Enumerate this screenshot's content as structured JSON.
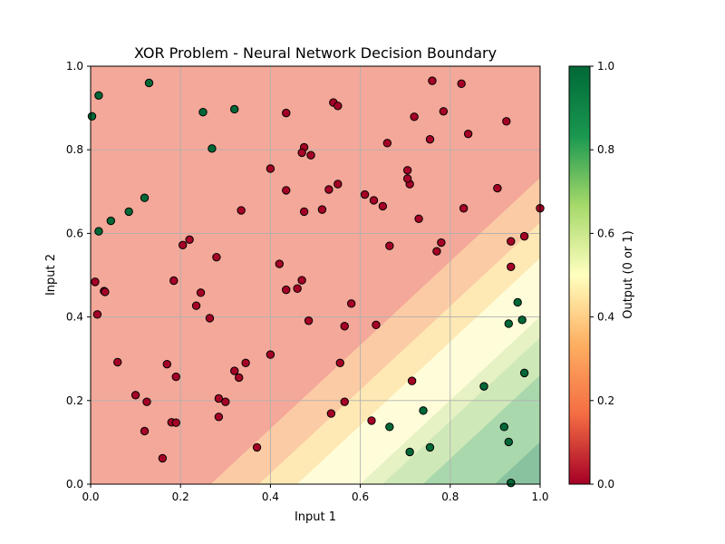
{
  "chart_data": {
    "type": "scatter",
    "title": "XOR Problem - Neural Network Decision Boundary",
    "xlabel": "Input 1",
    "ylabel": "Input 2",
    "xlim": [
      0,
      1
    ],
    "ylim": [
      0,
      1
    ],
    "xticks": [
      "0.0",
      "0.2",
      "0.4",
      "0.6",
      "0.8",
      "1.0"
    ],
    "yticks": [
      "0.0",
      "0.2",
      "0.4",
      "0.6",
      "0.8",
      "1.0"
    ],
    "grid": true,
    "colorbar": {
      "label": "Output (0 or 1)",
      "range": [
        0,
        1
      ],
      "ticks": [
        "0.0",
        "0.2",
        "0.4",
        "0.6",
        "0.8",
        "1.0"
      ],
      "colormap": [
        "#a50026",
        "#f46d43",
        "#fdae61",
        "#ffffbf",
        "#a6d96a",
        "#1a9850",
        "#006837"
      ]
    },
    "decision_regions": {
      "boundary_direction": "x - y",
      "bands": [
        {
          "offset_min": -1.0,
          "offset_max": 0.268,
          "output": 0.1,
          "color": "#f4a899"
        },
        {
          "offset_min": 0.268,
          "offset_max": 0.375,
          "output": 0.3,
          "color": "#fbcba5"
        },
        {
          "offset_min": 0.375,
          "offset_max": 0.46,
          "output": 0.4,
          "color": "#fee8b4"
        },
        {
          "offset_min": 0.46,
          "offset_max": 0.6,
          "output": 0.5,
          "color": "#fffdd9"
        },
        {
          "offset_min": 0.6,
          "offset_max": 0.65,
          "output": 0.6,
          "color": "#e6f2c3"
        },
        {
          "offset_min": 0.65,
          "offset_max": 0.74,
          "output": 0.7,
          "color": "#cfe8b8"
        },
        {
          "offset_min": 0.74,
          "offset_max": 0.9,
          "output": 0.8,
          "color": "#a9d8ac"
        },
        {
          "offset_min": 0.9,
          "offset_max": 1.0,
          "output": 0.9,
          "color": "#88c29f"
        }
      ]
    },
    "series": [
      {
        "label": 1,
        "color": "#006837",
        "points": [
          [
            0.003,
            0.88
          ],
          [
            0.018,
            0.93
          ],
          [
            0.13,
            0.96
          ],
          [
            0.25,
            0.89
          ],
          [
            0.32,
            0.897
          ],
          [
            0.27,
            0.803
          ],
          [
            0.12,
            0.685
          ],
          [
            0.085,
            0.652
          ],
          [
            0.045,
            0.63
          ],
          [
            0.018,
            0.605
          ],
          [
            0.95,
            0.435
          ],
          [
            0.96,
            0.393
          ],
          [
            0.93,
            0.384
          ],
          [
            0.965,
            0.266
          ],
          [
            0.875,
            0.234
          ],
          [
            0.74,
            0.176
          ],
          [
            0.665,
            0.137
          ],
          [
            0.92,
            0.137
          ],
          [
            0.93,
            0.101
          ],
          [
            0.755,
            0.088
          ],
          [
            0.71,
            0.077
          ],
          [
            0.935,
            0.003
          ]
        ]
      },
      {
        "label": 0,
        "color": "#a50026",
        "points": [
          [
            0.435,
            0.888
          ],
          [
            0.54,
            0.913
          ],
          [
            0.55,
            0.905
          ],
          [
            0.475,
            0.806
          ],
          [
            0.47,
            0.793
          ],
          [
            0.49,
            0.787
          ],
          [
            0.4,
            0.755
          ],
          [
            0.435,
            0.703
          ],
          [
            0.53,
            0.705
          ],
          [
            0.55,
            0.718
          ],
          [
            0.335,
            0.655
          ],
          [
            0.475,
            0.652
          ],
          [
            0.515,
            0.657
          ],
          [
            0.42,
            0.527
          ],
          [
            0.435,
            0.465
          ],
          [
            0.46,
            0.468
          ],
          [
            0.47,
            0.488
          ],
          [
            0.485,
            0.391
          ],
          [
            0.58,
            0.432
          ],
          [
            0.565,
            0.378
          ],
          [
            0.4,
            0.31
          ],
          [
            0.555,
            0.29
          ],
          [
            0.565,
            0.197
          ],
          [
            0.535,
            0.169
          ],
          [
            0.37,
            0.088
          ],
          [
            0.205,
            0.572
          ],
          [
            0.22,
            0.585
          ],
          [
            0.28,
            0.543
          ],
          [
            0.185,
            0.487
          ],
          [
            0.245,
            0.458
          ],
          [
            0.235,
            0.427
          ],
          [
            0.265,
            0.397
          ],
          [
            0.01,
            0.484
          ],
          [
            0.03,
            0.462
          ],
          [
            0.032,
            0.46
          ],
          [
            0.015,
            0.406
          ],
          [
            0.06,
            0.292
          ],
          [
            0.17,
            0.287
          ],
          [
            0.19,
            0.257
          ],
          [
            0.345,
            0.29
          ],
          [
            0.32,
            0.271
          ],
          [
            0.33,
            0.255
          ],
          [
            0.1,
            0.213
          ],
          [
            0.125,
            0.197
          ],
          [
            0.285,
            0.205
          ],
          [
            0.3,
            0.197
          ],
          [
            0.285,
            0.161
          ],
          [
            0.18,
            0.148
          ],
          [
            0.19,
            0.147
          ],
          [
            0.12,
            0.127
          ],
          [
            0.16,
            0.062
          ],
          [
            0.76,
            0.965
          ],
          [
            0.825,
            0.958
          ],
          [
            0.72,
            0.879
          ],
          [
            0.785,
            0.892
          ],
          [
            0.925,
            0.868
          ],
          [
            0.84,
            0.838
          ],
          [
            0.755,
            0.825
          ],
          [
            0.66,
            0.816
          ],
          [
            0.705,
            0.751
          ],
          [
            0.71,
            0.718
          ],
          [
            0.705,
            0.731
          ],
          [
            0.905,
            0.708
          ],
          [
            0.61,
            0.693
          ],
          [
            0.63,
            0.679
          ],
          [
            0.65,
            0.665
          ],
          [
            0.83,
            0.66
          ],
          [
            0.73,
            0.635
          ],
          [
            1.0,
            0.66
          ],
          [
            0.965,
            0.593
          ],
          [
            0.935,
            0.581
          ],
          [
            0.78,
            0.578
          ],
          [
            0.77,
            0.557
          ],
          [
            0.665,
            0.57
          ],
          [
            0.935,
            0.52
          ],
          [
            0.635,
            0.381
          ],
          [
            0.715,
            0.247
          ],
          [
            0.625,
            0.152
          ]
        ]
      }
    ]
  }
}
